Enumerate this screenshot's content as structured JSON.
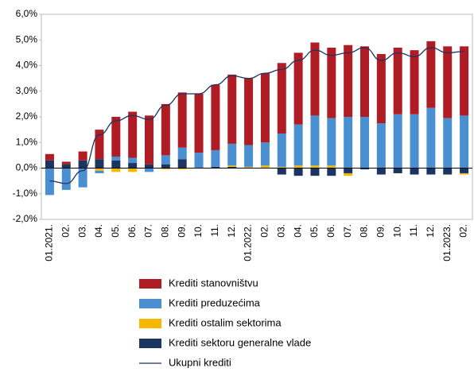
{
  "chart_data": {
    "type": "bar",
    "categories": [
      "01.2021.",
      "02.",
      "03.",
      "04.",
      "05.",
      "06.",
      "07.",
      "08.",
      "09.",
      "10.",
      "11.",
      "12.",
      "01.2022.",
      "02.",
      "03.",
      "04.",
      "05.",
      "06.",
      "07.",
      "08.",
      "09.",
      "10.",
      "11.",
      "12.",
      "01.2023.",
      "02."
    ],
    "series": [
      {
        "name": "Krediti stanovništvu",
        "color": "#b01c24",
        "values": [
          0.25,
          0.1,
          0.35,
          1.15,
          1.55,
          1.8,
          1.9,
          2.0,
          2.15,
          2.3,
          2.55,
          2.7,
          2.6,
          2.7,
          2.75,
          2.8,
          2.85,
          2.75,
          2.8,
          2.75,
          2.7,
          2.6,
          2.5,
          2.6,
          2.8,
          2.7
        ]
      },
      {
        "name": "Krediti preduzećima",
        "color": "#4a90d0",
        "values": [
          -1.05,
          -0.85,
          -0.75,
          -0.1,
          0.15,
          0.2,
          -0.15,
          0.35,
          0.45,
          0.6,
          0.65,
          0.85,
          0.85,
          0.9,
          1.3,
          1.6,
          1.95,
          1.85,
          2.0,
          2.0,
          1.75,
          2.1,
          2.1,
          2.35,
          1.95,
          2.05
        ]
      },
      {
        "name": "Krediti ostalim sektorima",
        "color": "#f5b800",
        "values": [
          0,
          0,
          0,
          -0.1,
          -0.15,
          -0.15,
          0,
          -0.05,
          -0.05,
          0,
          0,
          0.05,
          0.05,
          0.1,
          0.05,
          0.1,
          0.1,
          0.1,
          -0.1,
          0,
          0,
          0,
          0,
          0,
          0,
          -0.05
        ]
      },
      {
        "name": "Krediti sektoru generalne vlade",
        "color": "#1b3461",
        "values": [
          0.3,
          0.15,
          0.3,
          0.35,
          0.3,
          0.2,
          0.15,
          0.15,
          0.35,
          0,
          0.05,
          0.05,
          0,
          0,
          -0.25,
          -0.3,
          -0.3,
          -0.3,
          -0.2,
          -0.05,
          -0.25,
          -0.2,
          -0.25,
          -0.25,
          -0.25,
          -0.2
        ]
      },
      {
        "name": "Ukupni krediti",
        "color": "#1b3461",
        "type": "line",
        "values": [
          -0.5,
          -0.6,
          -0.1,
          1.3,
          1.85,
          2.05,
          1.9,
          2.45,
          2.9,
          2.9,
          3.25,
          3.6,
          3.5,
          3.7,
          3.85,
          4.2,
          4.6,
          4.4,
          4.5,
          4.7,
          4.2,
          4.5,
          4.35,
          4.7,
          4.5,
          4.55
        ]
      }
    ],
    "ylim": [
      -2,
      6
    ],
    "yticks": [
      {
        "value": -2,
        "label": "-2,0%"
      },
      {
        "value": -1,
        "label": "-1,0%"
      },
      {
        "value": 0,
        "label": "0,0%"
      },
      {
        "value": 1,
        "label": "1,0%"
      },
      {
        "value": 2,
        "label": "2,0%"
      },
      {
        "value": 3,
        "label": "3,0%"
      },
      {
        "value": 4,
        "label": "4,0%"
      },
      {
        "value": 5,
        "label": "5,0%"
      },
      {
        "value": 6,
        "label": "6,0%"
      }
    ],
    "grid": false
  }
}
